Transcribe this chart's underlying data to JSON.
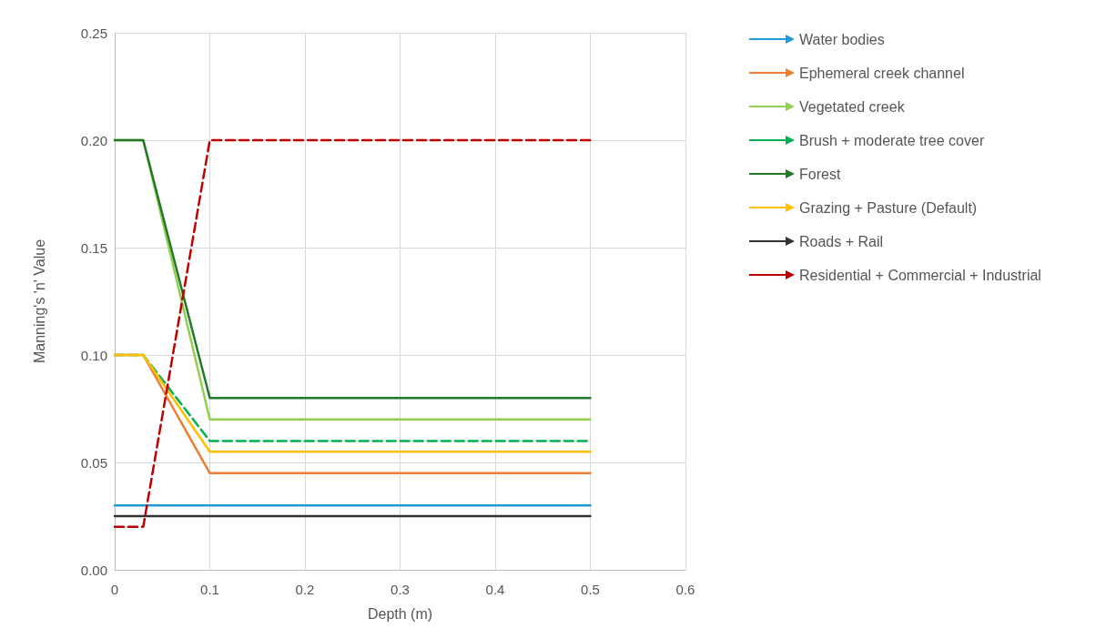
{
  "chart_data": {
    "type": "line",
    "xlabel": "Depth (m)",
    "ylabel": "Manning's 'n' Value",
    "xlim": [
      0,
      0.6
    ],
    "xticks": [
      0,
      0.1,
      0.2,
      0.3,
      0.4,
      0.5,
      0.6
    ],
    "ylim": [
      0,
      0.25
    ],
    "yticks": [
      {
        "value": 0,
        "label": "0.00"
      },
      {
        "value": 0.05,
        "label": "0.05"
      },
      {
        "value": 0.1,
        "label": "0.10"
      },
      {
        "value": 0.15,
        "label": "0.15"
      },
      {
        "value": 0.2,
        "label": "0.20"
      },
      {
        "value": 0.25,
        "label": "0.25"
      }
    ],
    "grid": true,
    "legend": "top right",
    "marker": "none",
    "series": [
      {
        "name": "Water bodies",
        "color": "#1e9cd8",
        "x": [
          0,
          0.5
        ],
        "values": [
          0.03,
          0.03
        ],
        "line_style": "solid"
      },
      {
        "name": "Ephemeral creek channel",
        "color": "#ed7d31",
        "x": [
          0,
          0.03,
          0.1,
          0.5
        ],
        "values": [
          0.1,
          0.1,
          0.045,
          0.045
        ],
        "line_style": "solid"
      },
      {
        "name": "Vegetated creek",
        "color": "#92d050",
        "x": [
          0,
          0.03,
          0.1,
          0.5
        ],
        "values": [
          0.2,
          0.2,
          0.07,
          0.07
        ],
        "line_style": "solid"
      },
      {
        "name": "Brush + moderate tree cover",
        "color": "#00b050",
        "x": [
          0,
          0.03,
          0.1,
          0.5
        ],
        "values": [
          0.1,
          0.1,
          0.06,
          0.06
        ],
        "line_style": "dashed"
      },
      {
        "name": "Forest",
        "color": "#217a2a",
        "x": [
          0,
          0.03,
          0.1,
          0.5
        ],
        "values": [
          0.2,
          0.2,
          0.08,
          0.08
        ],
        "line_style": "solid"
      },
      {
        "name": "Grazing + Pasture (Default)",
        "color": "#ffc000",
        "x": [
          0,
          0.03,
          0.1,
          0.5
        ],
        "values": [
          0.1,
          0.1,
          0.055,
          0.055
        ],
        "line_style": "solid"
      },
      {
        "name": "Roads + Rail",
        "color": "#333333",
        "x": [
          0,
          0.5
        ],
        "values": [
          0.025,
          0.025
        ],
        "line_style": "solid"
      },
      {
        "name": "Residential + Commercial + Industrial",
        "color": "#c00000",
        "x": [
          0,
          0.03,
          0.1,
          0.5
        ],
        "values": [
          0.02,
          0.02,
          0.2,
          0.2
        ],
        "line_style": "dashed"
      }
    ]
  }
}
